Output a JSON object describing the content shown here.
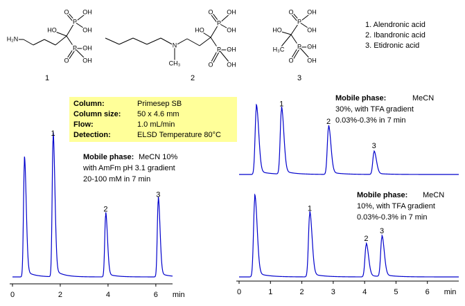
{
  "structures": [
    {
      "number": "1",
      "atoms": [
        "H₂N",
        "HO",
        "O",
        "P",
        "OH",
        "OH",
        "P",
        "OH",
        "O",
        "OH"
      ]
    },
    {
      "number": "2",
      "atoms": [
        "N",
        "CH₃",
        "HO",
        "O",
        "P",
        "OH",
        "OH",
        "P",
        "OH",
        "O",
        "OH"
      ]
    },
    {
      "number": "3",
      "atoms": [
        "HO",
        "H₃C",
        "O",
        "P",
        "OH",
        "OH",
        "P",
        "OH",
        "O",
        "OH"
      ]
    }
  ],
  "compounds": [
    "1.  Alendronic acid",
    "2.  Ibandronic acid",
    "3.  Etidronic acid"
  ],
  "conditions": [
    {
      "key": "Column:",
      "value": "Primesep SB"
    },
    {
      "key": "Column size:",
      "value": "50 x 4.6 mm"
    },
    {
      "key": "Flow:",
      "value": "1.0 mL/min"
    },
    {
      "key": "Detection:",
      "value": "ELSD Temperature 80°C"
    }
  ],
  "chart_data": [
    {
      "type": "line",
      "x_label": "min",
      "color": "#0000cc",
      "xlim": [
        0,
        6.7
      ],
      "xticks": [
        0,
        2,
        4,
        6
      ],
      "ylim": [
        0,
        100
      ],
      "peaks": {
        "x": [
          0.5,
          1.7,
          3.9,
          6.1
        ],
        "values": [
          78,
          94,
          42,
          52
        ],
        "labels": [
          null,
          "1",
          "2",
          "3"
        ]
      },
      "annotation": {
        "label": "Mobile phase:",
        "lines": [
          " MeCN 10%",
          "with AmFm pH 3.1 gradient",
          "20-100 mM in 7 min"
        ]
      }
    },
    {
      "type": "line",
      "color": "#0000cc",
      "xlim": [
        0,
        7
      ],
      "ylim": [
        0,
        100
      ],
      "peaks": {
        "x": [
          0.55,
          1.35,
          2.85,
          4.3
        ],
        "values": [
          95,
          92,
          67,
          32
        ],
        "labels": [
          null,
          "1",
          "2",
          "3"
        ]
      },
      "annotation": {
        "label": "Mobile phase:",
        "lines": [
          "MeCN",
          "30%, with TFA gradient",
          "0.03%-0.3% in 7 min"
        ]
      }
    },
    {
      "type": "line",
      "x_label": "min",
      "color": "#0000cc",
      "xlim": [
        0,
        7
      ],
      "xticks": [
        0,
        1,
        2,
        3,
        4,
        5,
        6
      ],
      "ylim": [
        0,
        100
      ],
      "peaks": {
        "x": [
          0.5,
          2.25,
          4.05,
          4.55
        ],
        "values": [
          100,
          80,
          41,
          50
        ],
        "labels": [
          null,
          "1",
          "2",
          "3"
        ]
      },
      "annotation": {
        "label": "Mobile phase:",
        "lines": [
          "MeCN",
          "10%, with TFA gradient",
          "0.03%-0.3% in 7 min"
        ]
      }
    }
  ]
}
